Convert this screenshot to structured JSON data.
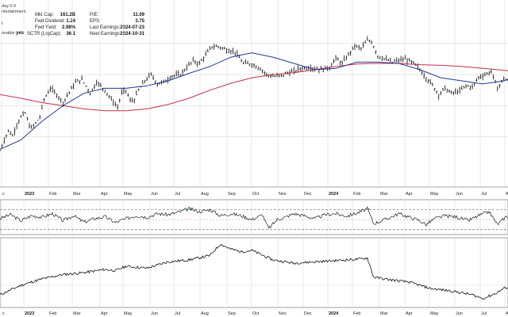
{
  "header": {
    "line1": "day 0.0",
    "line2": "ntertainment",
    "frag3": "t",
    "frag4": "onable",
    "frag4_value": "yes"
  },
  "stats": [
    {
      "label": "Mkt Cap:",
      "value": "161.2B"
    },
    {
      "label": "Fwd Dividend:",
      "value": "1.24"
    },
    {
      "label": "Fwd Yield:",
      "value": "2.98%"
    },
    {
      "label": "SCTR (LrgCap):",
      "value": "36.1"
    },
    {
      "label": "P/E:",
      "value": "11.09"
    },
    {
      "label": "EPS:",
      "value": "3.75"
    },
    {
      "label": "Last Earnings:",
      "value": "2024-07-23"
    },
    {
      "label": "Next Earnings:",
      "value": "2024-10-31"
    }
  ],
  "colors": {
    "price": "#111111",
    "ma_fast": "#1f3a93",
    "ma_slow": "#c0304a",
    "indicator_up": "#2e9c3f",
    "dashed": "#777777"
  },
  "chart_data": [
    {
      "type": "ohlc",
      "panel": "price",
      "x_ticks": [
        "c",
        "2023",
        "Feb",
        "Mar",
        "Apr",
        "May",
        "Jun",
        "Jul",
        "Aug",
        "Sep",
        "Oct",
        "Nov",
        "Dec",
        "2024",
        "Feb",
        "Mar",
        "Apr",
        "May",
        "Jun",
        "Jul",
        "Aug"
      ],
      "bold_ticks": [
        "2023",
        "2024"
      ],
      "price": [
        [
          0,
          28
        ],
        [
          2,
          45
        ],
        [
          4,
          60
        ],
        [
          6,
          52
        ],
        [
          8,
          70
        ],
        [
          10,
          82
        ],
        [
          12,
          88
        ],
        [
          14,
          68
        ],
        [
          15,
          64
        ],
        [
          17,
          72
        ],
        [
          19,
          82
        ],
        [
          21,
          110
        ],
        [
          24,
          128
        ],
        [
          27,
          118
        ],
        [
          30,
          105
        ],
        [
          33,
          122
        ],
        [
          36,
          138
        ],
        [
          39,
          142
        ],
        [
          41,
          132
        ],
        [
          43,
          120
        ],
        [
          46,
          138
        ],
        [
          50,
          125
        ],
        [
          53,
          110
        ],
        [
          56,
          98
        ],
        [
          58,
          120
        ],
        [
          60,
          125
        ],
        [
          62,
          108
        ],
        [
          64,
          110
        ],
        [
          66,
          125
        ],
        [
          69,
          140
        ],
        [
          72,
          150
        ],
        [
          75,
          135
        ],
        [
          78,
          138
        ],
        [
          82,
          148
        ],
        [
          86,
          150
        ],
        [
          89,
          162
        ],
        [
          92,
          172
        ],
        [
          95,
          168
        ],
        [
          98,
          182
        ],
        [
          101,
          195
        ],
        [
          104,
          195
        ],
        [
          108,
          190
        ],
        [
          112,
          186
        ],
        [
          116,
          168
        ],
        [
          120,
          167
        ],
        [
          124,
          160
        ],
        [
          127,
          150
        ],
        [
          131,
          147
        ],
        [
          134,
          148
        ],
        [
          137,
          153
        ],
        [
          140,
          155
        ],
        [
          143,
          160
        ],
        [
          147,
          162
        ],
        [
          150,
          160
        ],
        [
          153,
          158
        ],
        [
          157,
          162
        ],
        [
          160,
          176
        ],
        [
          163,
          168
        ],
        [
          166,
          182
        ],
        [
          169,
          196
        ],
        [
          172,
          192
        ],
        [
          175,
          205
        ],
        [
          177,
          203
        ],
        [
          180,
          180
        ],
        [
          184,
          174
        ],
        [
          187,
          170
        ],
        [
          190,
          173
        ],
        [
          193,
          175
        ],
        [
          197,
          168
        ],
        [
          200,
          158
        ],
        [
          203,
          145
        ],
        [
          206,
          133
        ],
        [
          209,
          118
        ],
        [
          212,
          128
        ],
        [
          215,
          120
        ],
        [
          219,
          124
        ],
        [
          222,
          132
        ],
        [
          225,
          130
        ],
        [
          228,
          146
        ],
        [
          231,
          150
        ],
        [
          234,
          155
        ],
        [
          237,
          128
        ],
        [
          240,
          144
        ],
        [
          242,
          140
        ]
      ],
      "ma_fast": [
        [
          0,
          30
        ],
        [
          10,
          45
        ],
        [
          20,
          75
        ],
        [
          30,
          100
        ],
        [
          40,
          120
        ],
        [
          50,
          128
        ],
        [
          60,
          128
        ],
        [
          70,
          132
        ],
        [
          80,
          140
        ],
        [
          90,
          152
        ],
        [
          100,
          163
        ],
        [
          110,
          178
        ],
        [
          120,
          185
        ],
        [
          130,
          178
        ],
        [
          140,
          168
        ],
        [
          150,
          158
        ],
        [
          160,
          160
        ],
        [
          170,
          170
        ],
        [
          180,
          170
        ],
        [
          190,
          168
        ],
        [
          200,
          158
        ],
        [
          210,
          145
        ],
        [
          220,
          140
        ],
        [
          230,
          135
        ],
        [
          240,
          140
        ],
        [
          242,
          142
        ]
      ],
      "ma_slow": [
        [
          0,
          118
        ],
        [
          10,
          112
        ],
        [
          20,
          105
        ],
        [
          30,
          100
        ],
        [
          40,
          95
        ],
        [
          50,
          92
        ],
        [
          60,
          92
        ],
        [
          70,
          95
        ],
        [
          80,
          102
        ],
        [
          90,
          112
        ],
        [
          100,
          125
        ],
        [
          110,
          136
        ],
        [
          120,
          145
        ],
        [
          130,
          150
        ],
        [
          140,
          153
        ],
        [
          150,
          158
        ],
        [
          160,
          163
        ],
        [
          170,
          167
        ],
        [
          180,
          168
        ],
        [
          190,
          168
        ],
        [
          200,
          166
        ],
        [
          210,
          165
        ],
        [
          220,
          163
        ],
        [
          230,
          160
        ],
        [
          240,
          157
        ],
        [
          242,
          156
        ]
      ]
    },
    {
      "type": "line",
      "panel": "momentum",
      "reference_levels": [
        70,
        50,
        30
      ],
      "values": [
        [
          0,
          52
        ],
        [
          5,
          60
        ],
        [
          10,
          48
        ],
        [
          15,
          58
        ],
        [
          20,
          55
        ],
        [
          25,
          62
        ],
        [
          30,
          48
        ],
        [
          35,
          58
        ],
        [
          40,
          45
        ],
        [
          45,
          52
        ],
        [
          50,
          56
        ],
        [
          55,
          44
        ],
        [
          60,
          52
        ],
        [
          65,
          58
        ],
        [
          70,
          55
        ],
        [
          75,
          62
        ],
        [
          80,
          60
        ],
        [
          85,
          65
        ],
        [
          90,
          72
        ],
        [
          95,
          66
        ],
        [
          100,
          70
        ],
        [
          105,
          58
        ],
        [
          110,
          62
        ],
        [
          115,
          58
        ],
        [
          120,
          50
        ],
        [
          125,
          60
        ],
        [
          128,
          32
        ],
        [
          132,
          50
        ],
        [
          136,
          55
        ],
        [
          140,
          62
        ],
        [
          145,
          58
        ],
        [
          150,
          52
        ],
        [
          155,
          60
        ],
        [
          160,
          62
        ],
        [
          165,
          57
        ],
        [
          170,
          63
        ],
        [
          175,
          72
        ],
        [
          178,
          42
        ],
        [
          182,
          48
        ],
        [
          186,
          55
        ],
        [
          190,
          62
        ],
        [
          195,
          55
        ],
        [
          200,
          48
        ],
        [
          203,
          40
        ],
        [
          207,
          52
        ],
        [
          212,
          58
        ],
        [
          218,
          55
        ],
        [
          223,
          48
        ],
        [
          228,
          58
        ],
        [
          233,
          66
        ],
        [
          237,
          40
        ],
        [
          241,
          56
        ],
        [
          242,
          58
        ]
      ]
    },
    {
      "type": "line",
      "panel": "relative",
      "values": [
        [
          0,
          20
        ],
        [
          10,
          35
        ],
        [
          20,
          45
        ],
        [
          30,
          52
        ],
        [
          40,
          55
        ],
        [
          50,
          60
        ],
        [
          55,
          58
        ],
        [
          60,
          65
        ],
        [
          70,
          62
        ],
        [
          80,
          72
        ],
        [
          90,
          75
        ],
        [
          100,
          82
        ],
        [
          105,
          100
        ],
        [
          110,
          92
        ],
        [
          115,
          88
        ],
        [
          120,
          90
        ],
        [
          130,
          75
        ],
        [
          140,
          70
        ],
        [
          150,
          72
        ],
        [
          160,
          74
        ],
        [
          170,
          76
        ],
        [
          175,
          78
        ],
        [
          178,
          48
        ],
        [
          185,
          44
        ],
        [
          195,
          40
        ],
        [
          205,
          30
        ],
        [
          215,
          26
        ],
        [
          225,
          20
        ],
        [
          230,
          14
        ],
        [
          236,
          22
        ],
        [
          240,
          30
        ],
        [
          242,
          32
        ]
      ]
    }
  ]
}
